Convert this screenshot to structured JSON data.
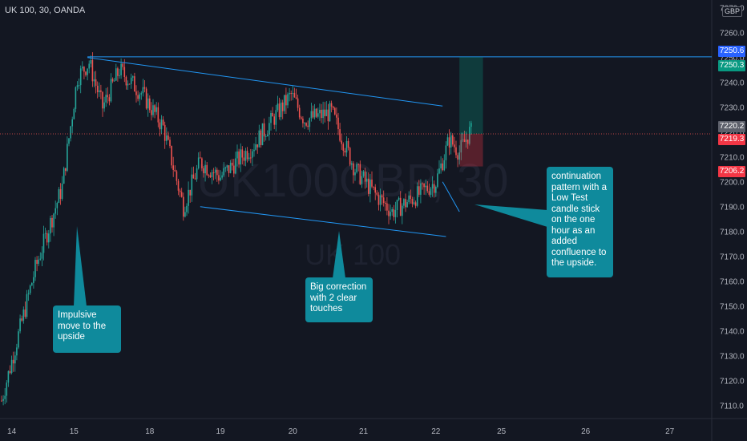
{
  "symbol_label": "UK 100, 30, OANDA",
  "currency": "GBP",
  "watermark": {
    "ticker": "UK100GBP, 30",
    "name": "UK 100"
  },
  "price_tags": [
    {
      "value": "7250.6",
      "color": "#2962ff"
    },
    {
      "value": "7250.3",
      "color": "#089981"
    },
    {
      "value": "7220.2",
      "color": "#5d606b"
    },
    {
      "value": "7219.3",
      "color": "#f23645"
    },
    {
      "value": "7206.2",
      "color": "#f23645"
    }
  ],
  "annotations": [
    {
      "text": "Impulsive\nmove to the\nupside"
    },
    {
      "text": "Big correction\nwith 2 clear\ntouches"
    },
    {
      "text": "continuation\npattern with a\nLow Test\ncandle stick\non the one\nhour as an\nadded\nconfluence to\nthe upside."
    }
  ],
  "chart_data": {
    "type": "candlestick",
    "y_axis": {
      "range": [
        7102,
        7273
      ],
      "ticks": [
        7110,
        7120,
        7130,
        7140,
        7150,
        7160,
        7170,
        7180,
        7190,
        7200,
        7210,
        7220,
        7230,
        7240,
        7250,
        7260,
        7270
      ],
      "tick_labels": [
        "7110.0",
        "7120.0",
        "7130.0",
        "7140.0",
        "7150.0",
        "7160.0",
        "7170.0",
        "7180.0",
        "7190.0",
        "7200.0",
        "7210.0",
        "7220.0",
        "7230.0",
        "7240.0",
        "7250.0",
        "7260.0",
        "7270.0"
      ]
    },
    "x_axis": {
      "tick_labels": [
        "14",
        "15",
        "18",
        "19",
        "20",
        "21",
        "22",
        "25",
        "26",
        "27"
      ],
      "tick_index": [
        6,
        43,
        88,
        130,
        173,
        215,
        258,
        297,
        347,
        397
      ]
    },
    "trend_path": [
      [
        0,
        7112
      ],
      [
        20,
        7165
      ],
      [
        36,
        7198
      ],
      [
        45,
        7242
      ],
      [
        52,
        7248
      ],
      [
        60,
        7230
      ],
      [
        70,
        7245
      ],
      [
        84,
        7235
      ],
      [
        96,
        7222
      ],
      [
        108,
        7190
      ],
      [
        118,
        7208
      ],
      [
        130,
        7202
      ],
      [
        150,
        7215
      ],
      [
        172,
        7235
      ],
      [
        180,
        7225
      ],
      [
        196,
        7228
      ],
      [
        210,
        7205
      ],
      [
        222,
        7195
      ],
      [
        232,
        7188
      ],
      [
        248,
        7195
      ],
      [
        258,
        7200
      ],
      [
        266,
        7217
      ],
      [
        272,
        7212
      ],
      [
        278,
        7220
      ]
    ],
    "candle_count": 280,
    "colors": {
      "up": "#26a69a",
      "down": "#ef5350"
    },
    "horizontal_line": {
      "price": 7250.3,
      "from_index": 51
    },
    "channel_upper": [
      [
        51,
        7250
      ],
      [
        262,
        7230.5
      ]
    ],
    "channel_lower": [
      [
        118,
        7190
      ],
      [
        264,
        7178
      ]
    ],
    "pullback_wedge": [
      [
        262,
        7200
      ],
      [
        272,
        7188
      ]
    ],
    "position": {
      "entry": 7219.3,
      "target": 7250.3,
      "stop": 7206.2,
      "from_index": 272,
      "to_index": 286
    },
    "last_price": 7219.3
  }
}
